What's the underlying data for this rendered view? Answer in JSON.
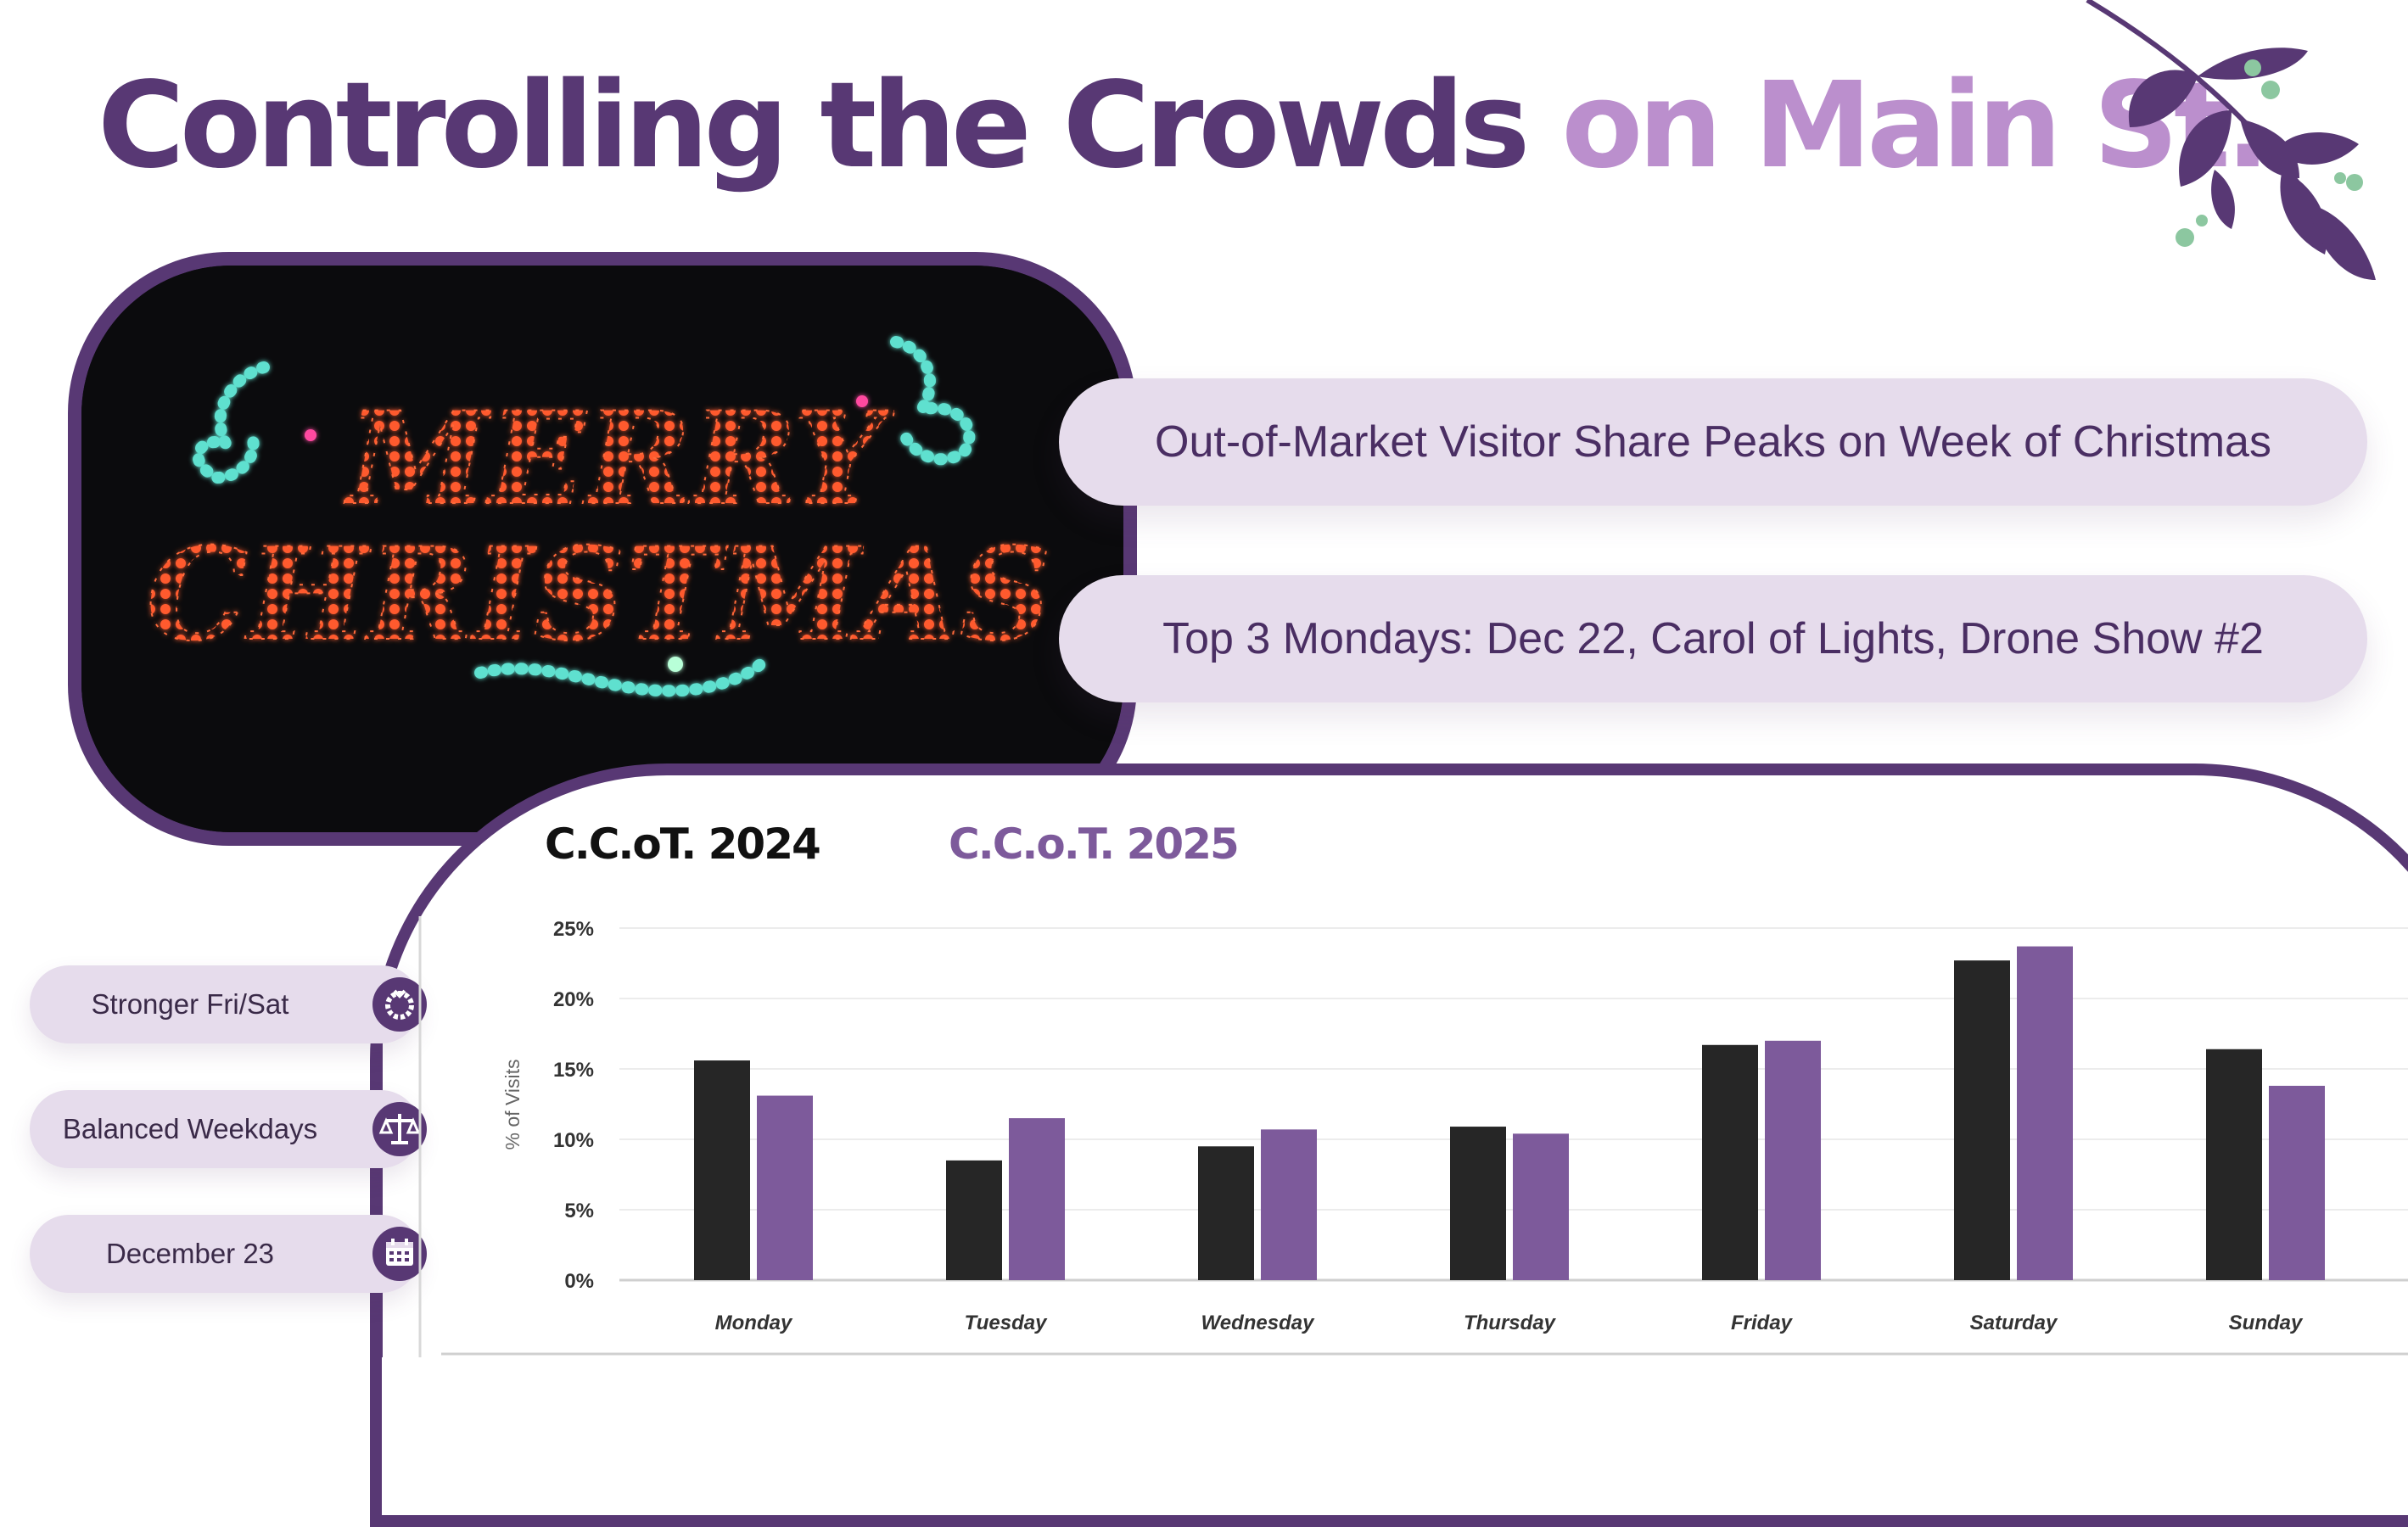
{
  "title": {
    "main": "Controlling the Crowds",
    "accent": "on Main St."
  },
  "headlines": [
    "Out-of-Market Visitor Share Peaks on Week of Christmas",
    "Top 3 Mondays: Dec 22, Carol of Lights, Drone Show #2"
  ],
  "badges": [
    {
      "label": "Stronger Fri/Sat",
      "icon": "wreath-icon"
    },
    {
      "label": "Balanced Weekdays",
      "icon": "scales-icon"
    },
    {
      "label": "December 23",
      "icon": "calendar-icon"
    }
  ],
  "photo": {
    "text_line1": "MERRY",
    "text_line2": "CHRISTMAS"
  },
  "colors": {
    "primary": "#583874",
    "accent": "#bb8fcd",
    "pill": "#e6dcec",
    "bar_2024": "#262626",
    "bar_2025": "#7d5a9b"
  },
  "chart_data": {
    "type": "bar",
    "categories": [
      "Monday",
      "Tuesday",
      "Wednesday",
      "Thursday",
      "Friday",
      "Saturday",
      "Sunday"
    ],
    "series": [
      {
        "name": "C.C.oT. 2024",
        "values": [
          15.6,
          8.5,
          9.5,
          10.9,
          16.7,
          22.7,
          16.4
        ]
      },
      {
        "name": "C.C.o.T. 2025",
        "values": [
          13.1,
          11.5,
          10.7,
          10.4,
          17.0,
          23.7,
          13.8
        ]
      }
    ],
    "ylabel": "% of Visits",
    "ylim": [
      0,
      25
    ],
    "yticks": [
      "0%",
      "5%",
      "10%",
      "15%",
      "20%",
      "25%"
    ],
    "grid": true
  }
}
